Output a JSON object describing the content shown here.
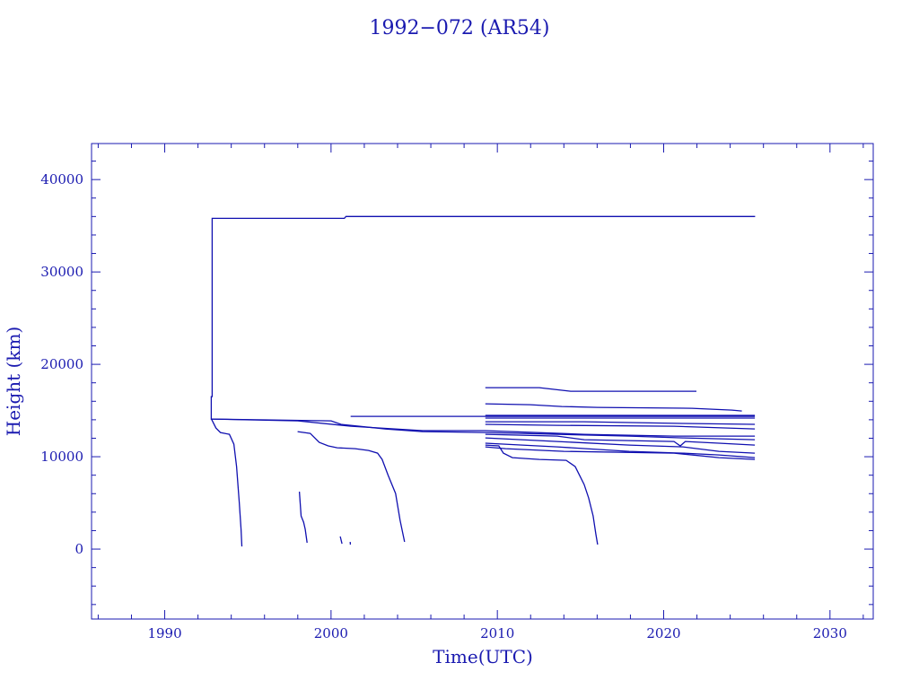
{
  "chart_data": {
    "type": "line",
    "title": "1992−072 (AR54)",
    "xlabel": "Time(UTC)",
    "ylabel": "Height (km)",
    "xlim": [
      1985.6,
      2032.6
    ],
    "ylim": [
      -7570,
      43900
    ],
    "xticks": [
      1990,
      2000,
      2010,
      2020,
      2030
    ],
    "yticks": [
      0,
      10000,
      20000,
      30000,
      40000
    ],
    "x_minor_step": 2,
    "y_minor_step": 2000,
    "grid": false,
    "colors": {
      "line": "#1010b0",
      "axis": "#1a1ab0",
      "text": "#1a1ab0"
    },
    "series": [
      {
        "points": [
          [
            1992.8,
            14000
          ],
          [
            1992.8,
            16500
          ],
          [
            1992.85,
            16500
          ],
          [
            1992.85,
            35800
          ],
          [
            2000.8,
            35800
          ],
          [
            2000.9,
            36000
          ],
          [
            2025.5,
            36000
          ]
        ]
      },
      {
        "points": [
          [
            1992.81,
            14080
          ],
          [
            1993.08,
            13110
          ],
          [
            1993.35,
            12620
          ],
          [
            1993.89,
            12430
          ],
          [
            1994.16,
            11360
          ],
          [
            1994.32,
            8930
          ],
          [
            1994.48,
            5050
          ],
          [
            1994.59,
            2140
          ],
          [
            1994.64,
            290
          ]
        ]
      },
      {
        "points": [
          [
            1992.81,
            14080
          ],
          [
            2000.0,
            13880
          ],
          [
            2000.6,
            13500
          ],
          [
            2003.3,
            13000
          ],
          [
            2005.5,
            12720
          ],
          [
            2009.28,
            12620
          ],
          [
            2013.6,
            12430
          ],
          [
            2017.92,
            12230
          ],
          [
            2021.16,
            12040
          ],
          [
            2025.48,
            11840
          ]
        ]
      },
      {
        "points": [
          [
            1992.81,
            14080
          ],
          [
            1998.0,
            13880
          ],
          [
            2001.2,
            13300
          ],
          [
            2005.5,
            12820
          ],
          [
            2009.28,
            12820
          ],
          [
            2015.22,
            12430
          ],
          [
            2020.62,
            12230
          ],
          [
            2025.48,
            12230
          ]
        ]
      },
      {
        "points": [
          [
            1997.99,
            12720
          ],
          [
            1998.75,
            12520
          ],
          [
            1999.29,
            11550
          ],
          [
            1999.83,
            11170
          ],
          [
            2000.37,
            10970
          ],
          [
            2001.45,
            10870
          ],
          [
            2002.26,
            10680
          ],
          [
            2002.8,
            10390
          ],
          [
            2003.07,
            9710
          ],
          [
            2003.44,
            7960
          ],
          [
            2003.88,
            6020
          ],
          [
            2004.15,
            3110
          ],
          [
            2004.42,
            780
          ]
        ]
      },
      {
        "points": [
          [
            1998.1,
            6210
          ],
          [
            1998.2,
            3590
          ],
          [
            1998.35,
            2910
          ],
          [
            1998.45,
            2140
          ],
          [
            1998.56,
            680
          ]
        ]
      },
      {
        "points": [
          [
            2000.55,
            1360
          ],
          [
            2000.66,
            580
          ]
        ]
      },
      {
        "points": [
          [
            2001.15,
            780
          ],
          [
            2001.16,
            480
          ]
        ]
      },
      {
        "points": [
          [
            2009.28,
            11260
          ],
          [
            2010.09,
            11170
          ],
          [
            2010.36,
            10390
          ],
          [
            2010.9,
            9900
          ],
          [
            2012.52,
            9710
          ],
          [
            2014.14,
            9610
          ],
          [
            2014.68,
            8930
          ],
          [
            2014.95,
            7960
          ],
          [
            2015.22,
            6990
          ],
          [
            2015.49,
            5530
          ],
          [
            2015.76,
            3590
          ],
          [
            2015.92,
            1650
          ],
          [
            2016.03,
            490
          ]
        ]
      },
      {
        "points": [
          [
            2009.28,
            17480
          ],
          [
            2012.52,
            17480
          ],
          [
            2014.41,
            17090
          ],
          [
            2021.97,
            17090
          ]
        ]
      },
      {
        "points": [
          [
            2009.28,
            15730
          ],
          [
            2011.98,
            15630
          ],
          [
            2013.87,
            15440
          ],
          [
            2016.03,
            15340
          ],
          [
            2021.7,
            15240
          ],
          [
            2024.1,
            15050
          ],
          [
            2024.7,
            14950
          ]
        ]
      },
      {
        "points": [
          [
            2001.18,
            14370
          ],
          [
            2025.48,
            14370
          ]
        ]
      },
      {
        "points": [
          [
            2009.28,
            14470
          ],
          [
            2025.48,
            14470
          ]
        ]
      },
      {
        "points": [
          [
            2009.28,
            14180
          ],
          [
            2025.48,
            14180
          ]
        ]
      },
      {
        "points": [
          [
            2009.28,
            13790
          ],
          [
            2015.22,
            13790
          ],
          [
            2021.16,
            13600
          ],
          [
            2025.48,
            13500
          ]
        ]
      },
      {
        "points": [
          [
            2009.28,
            13500
          ],
          [
            2013.6,
            13400
          ],
          [
            2020.62,
            13300
          ],
          [
            2025.48,
            13010
          ]
        ]
      },
      {
        "points": [
          [
            2009.28,
            12430
          ],
          [
            2013.6,
            12230
          ],
          [
            2015.22,
            11840
          ],
          [
            2020.62,
            11650
          ],
          [
            2021.0,
            11170
          ],
          [
            2021.3,
            11650
          ],
          [
            2023.32,
            11460
          ],
          [
            2025.48,
            11260
          ]
        ]
      },
      {
        "points": [
          [
            2009.28,
            12040
          ],
          [
            2013.6,
            11650
          ],
          [
            2017.92,
            11260
          ],
          [
            2021.16,
            11070
          ],
          [
            2023.32,
            10580
          ],
          [
            2025.48,
            10390
          ]
        ]
      },
      {
        "points": [
          [
            2009.28,
            11460
          ],
          [
            2013.6,
            11070
          ],
          [
            2017.92,
            10580
          ],
          [
            2021.16,
            10390
          ],
          [
            2023.32,
            10190
          ],
          [
            2025.48,
            9900
          ]
        ]
      },
      {
        "points": [
          [
            2009.28,
            11070
          ],
          [
            2010.5,
            10870
          ],
          [
            2014.0,
            10580
          ],
          [
            2020.62,
            10390
          ],
          [
            2023.32,
            9900
          ],
          [
            2025.48,
            9710
          ]
        ]
      }
    ]
  }
}
